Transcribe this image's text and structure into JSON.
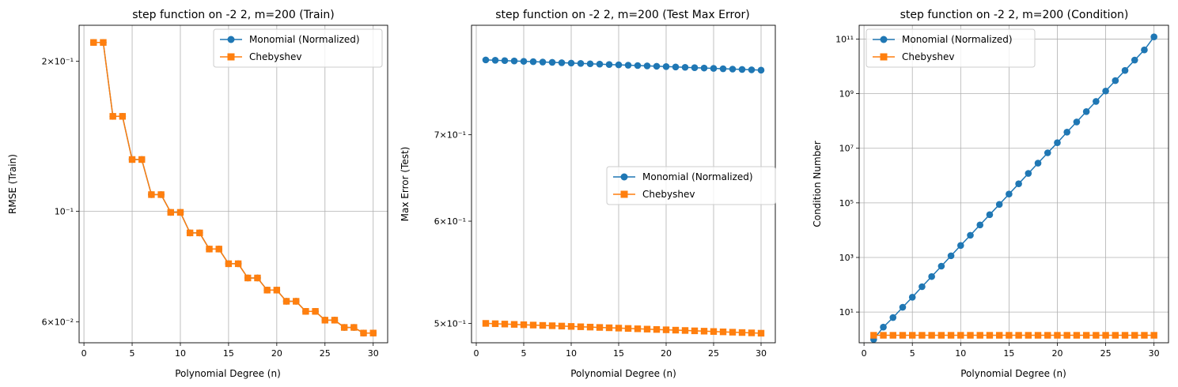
{
  "colors": {
    "monomial": "#1f77b4",
    "chebyshev": "#ff7f0e",
    "grid": "#b0b0b0"
  },
  "chart_data": [
    {
      "type": "line",
      "title": "step function on -2 2, m=200 (Train)",
      "xlabel": "Polynomial Degree (n)",
      "ylabel": "RMSE (Train)",
      "yscale": "log",
      "xlim": [
        -0.5,
        31.5
      ],
      "ylim": [
        0.0545,
        0.236
      ],
      "xticks": [
        0,
        5,
        10,
        15,
        20,
        25,
        30
      ],
      "yticks": [
        {
          "value": 0.2,
          "label": "2×10⁻¹"
        },
        {
          "value": 0.1,
          "label": "10⁻¹"
        },
        {
          "value": 0.06,
          "label": "6×10⁻²"
        }
      ],
      "grid_y_values": [
        0.1
      ],
      "legend_position": "upper right",
      "x": [
        1,
        2,
        3,
        4,
        5,
        6,
        7,
        8,
        9,
        10,
        11,
        12,
        13,
        14,
        15,
        16,
        17,
        18,
        19,
        20,
        21,
        22,
        23,
        24,
        25,
        26,
        27,
        28,
        29,
        30
      ],
      "series": [
        {
          "name": "Monomial (Normalized)",
          "marker": "circle",
          "values": [
            0.218,
            0.218,
            0.155,
            0.155,
            0.127,
            0.127,
            0.108,
            0.108,
            0.0995,
            0.0995,
            0.0905,
            0.0905,
            0.084,
            0.084,
            0.0785,
            0.0785,
            0.0735,
            0.0735,
            0.0695,
            0.0695,
            0.066,
            0.066,
            0.063,
            0.063,
            0.0605,
            0.0605,
            0.0585,
            0.0585,
            0.057,
            0.057
          ]
        },
        {
          "name": "Chebyshev",
          "marker": "square",
          "values": [
            0.218,
            0.218,
            0.155,
            0.155,
            0.127,
            0.127,
            0.108,
            0.108,
            0.0995,
            0.0995,
            0.0905,
            0.0905,
            0.084,
            0.084,
            0.0785,
            0.0785,
            0.0735,
            0.0735,
            0.0695,
            0.0695,
            0.066,
            0.066,
            0.063,
            0.063,
            0.0605,
            0.0605,
            0.0585,
            0.0585,
            0.057,
            0.057
          ]
        }
      ]
    },
    {
      "type": "line",
      "title": "step function on -2 2, m=200 (Test Max Error)",
      "xlabel": "Polynomial Degree (n)",
      "ylabel": "Max Error (Test)",
      "yscale": "log",
      "xlim": [
        -0.5,
        31.5
      ],
      "ylim": [
        0.483,
        0.851
      ],
      "xticks": [
        0,
        5,
        10,
        15,
        20,
        25,
        30
      ],
      "yticks": [
        {
          "value": 0.7,
          "label": "7×10⁻¹"
        },
        {
          "value": 0.6,
          "label": "6×10⁻¹"
        },
        {
          "value": 0.5,
          "label": "5×10⁻¹"
        }
      ],
      "grid_y_values": [],
      "legend_position": "center right",
      "x": [
        1,
        2,
        3,
        4,
        5,
        6,
        7,
        8,
        9,
        10,
        11,
        12,
        13,
        14,
        15,
        16,
        17,
        18,
        19,
        20,
        21,
        22,
        23,
        24,
        25,
        26,
        27,
        28,
        29,
        30
      ],
      "series": [
        {
          "name": "Monomial (Normalized)",
          "marker": "circle",
          "values": [
            0.8,
            0.7995,
            0.799,
            0.7985,
            0.798,
            0.7975,
            0.797,
            0.7965,
            0.796,
            0.7955,
            0.795,
            0.7945,
            0.794,
            0.7935,
            0.793,
            0.7925,
            0.792,
            0.7915,
            0.791,
            0.7905,
            0.79,
            0.7895,
            0.789,
            0.7885,
            0.788,
            0.7875,
            0.787,
            0.7865,
            0.786,
            0.7855
          ]
        },
        {
          "name": "Chebyshev",
          "marker": "square",
          "values": [
            0.5,
            0.4997,
            0.4994,
            0.4991,
            0.4988,
            0.4985,
            0.4982,
            0.4979,
            0.4976,
            0.4973,
            0.497,
            0.4967,
            0.4964,
            0.4961,
            0.4958,
            0.4955,
            0.4952,
            0.4949,
            0.4946,
            0.4943,
            0.494,
            0.4937,
            0.4934,
            0.4931,
            0.4928,
            0.4925,
            0.4922,
            0.4919,
            0.4916,
            0.4913
          ]
        }
      ]
    },
    {
      "type": "line",
      "title": "step function on -2 2, m=200 (Condition)",
      "xlabel": "Polynomial Degree (n)",
      "ylabel": "Condition Number",
      "yscale": "log",
      "xlim": [
        -0.5,
        31.5
      ],
      "ylim": [
        0.75,
        320000000000.0
      ],
      "xticks": [
        0,
        5,
        10,
        15,
        20,
        25,
        30
      ],
      "yticks": [
        {
          "value": 10,
          "label": "10¹"
        },
        {
          "value": 1000,
          "label": "10³"
        },
        {
          "value": 100000,
          "label": "10⁵"
        },
        {
          "value": 10000000,
          "label": "10⁷"
        },
        {
          "value": 1000000000,
          "label": "10⁹"
        },
        {
          "value": 100000000000,
          "label": "10¹¹"
        }
      ],
      "grid_y_values": [
        10,
        1000,
        100000,
        10000000,
        1000000000,
        100000000000
      ],
      "legend_position": "upper left",
      "x": [
        1,
        2,
        3,
        4,
        5,
        6,
        7,
        8,
        9,
        10,
        11,
        12,
        13,
        14,
        15,
        16,
        17,
        18,
        19,
        20,
        21,
        22,
        23,
        24,
        25,
        26,
        27,
        28,
        29,
        30
      ],
      "series": [
        {
          "name": "Monomial (Normalized)",
          "marker": "circle",
          "values": [
            1.0,
            2.8,
            6.3,
            15,
            35,
            85,
            200,
            480,
            1150,
            2750,
            6500,
            15500,
            37000,
            88000,
            210000,
            500000,
            1200000,
            2850000,
            6800000,
            16000000,
            39000000,
            92000000,
            220000000,
            520000000,
            1250000000,
            3000000000,
            7100000000,
            17000000000,
            40000000000,
            120000000000
          ]
        },
        {
          "name": "Chebyshev",
          "marker": "square",
          "values": [
            1.41,
            1.41,
            1.41,
            1.41,
            1.41,
            1.41,
            1.41,
            1.41,
            1.41,
            1.41,
            1.41,
            1.41,
            1.41,
            1.41,
            1.41,
            1.41,
            1.41,
            1.41,
            1.41,
            1.41,
            1.41,
            1.41,
            1.41,
            1.41,
            1.41,
            1.41,
            1.41,
            1.41,
            1.41,
            1.41
          ]
        }
      ]
    }
  ]
}
